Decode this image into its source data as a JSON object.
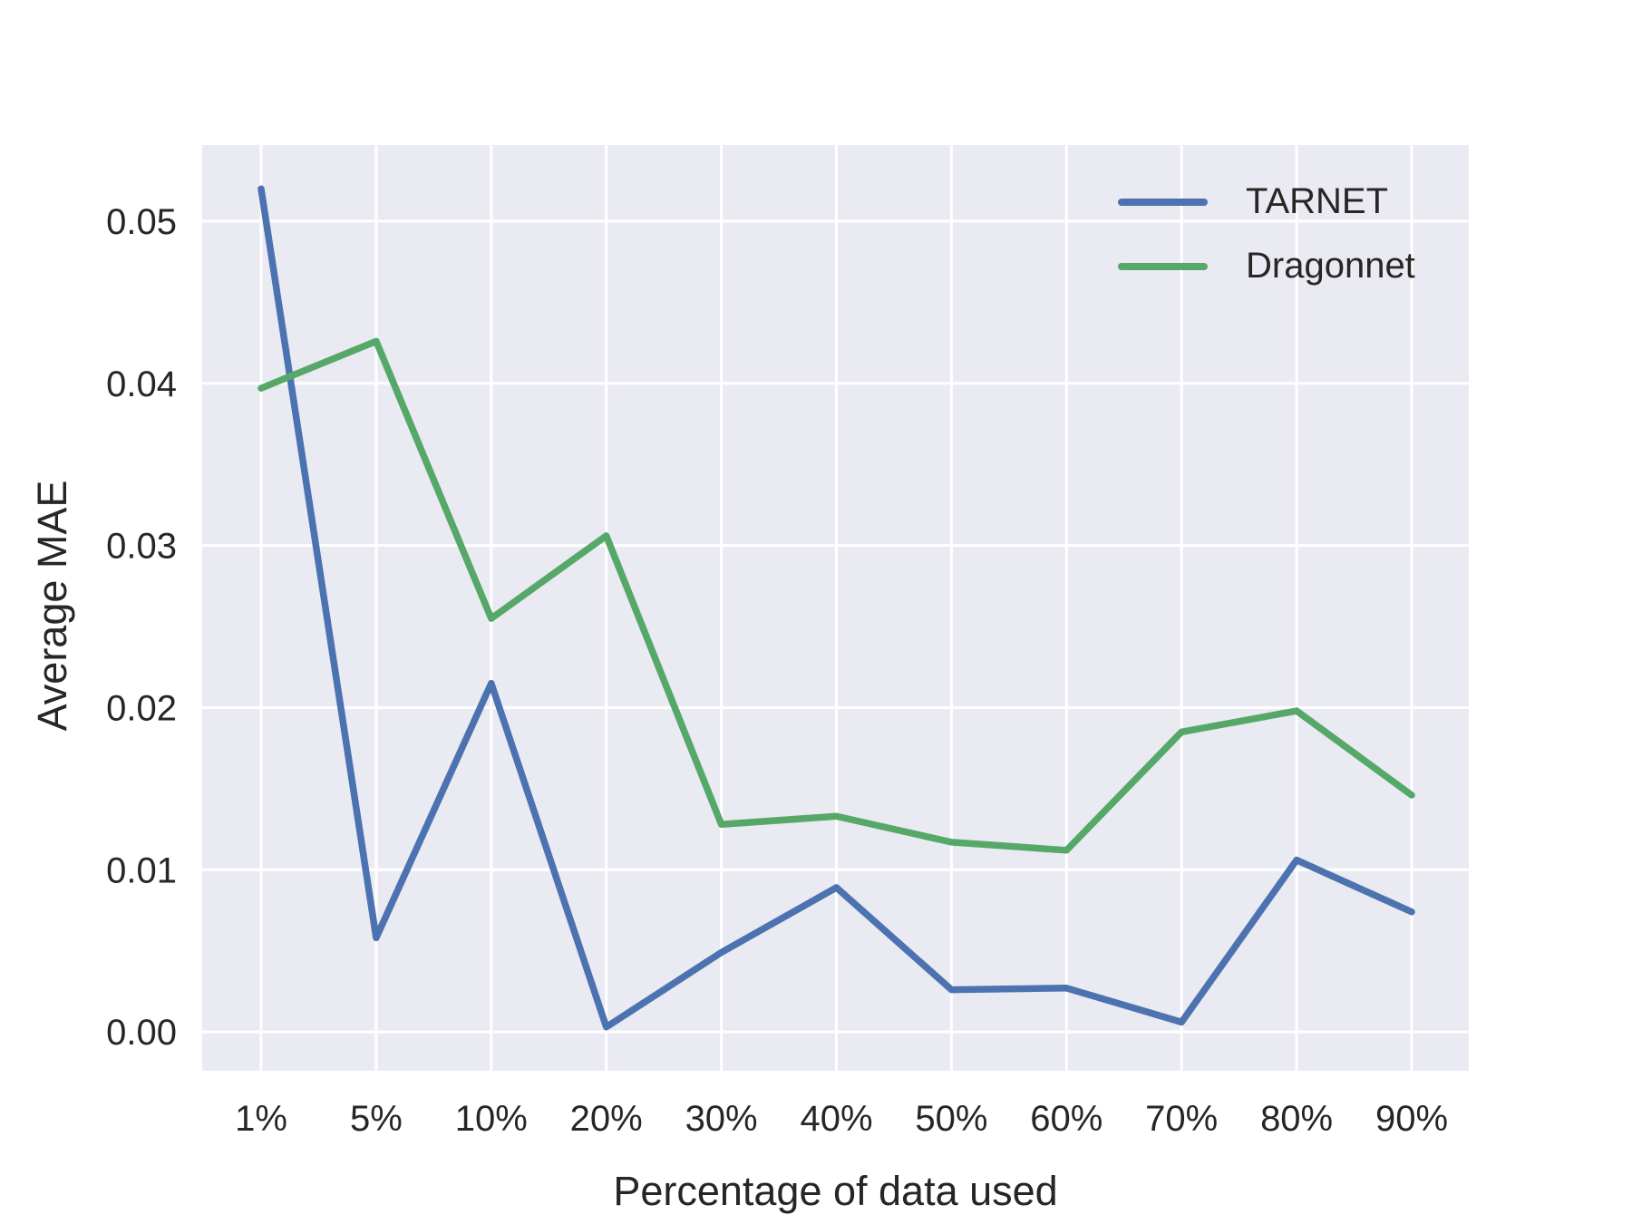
{
  "chart_data": {
    "type": "line",
    "title": "",
    "xlabel": "Percentage of data used",
    "ylabel": "Average MAE",
    "categories": [
      "1%",
      "5%",
      "10%",
      "20%",
      "30%",
      "40%",
      "50%",
      "60%",
      "70%",
      "80%",
      "90%"
    ],
    "series": [
      {
        "name": "TARNET",
        "color": "#4c72b0",
        "values": [
          0.052,
          0.0058,
          0.0215,
          0.0003,
          0.0049,
          0.0089,
          0.0026,
          0.0027,
          0.0006,
          0.0106,
          0.0074
        ]
      },
      {
        "name": "Dragonnet",
        "color": "#55a868",
        "values": [
          0.0397,
          0.0426,
          0.0255,
          0.0306,
          0.0128,
          0.0133,
          0.0117,
          0.0112,
          0.0185,
          0.0198,
          0.0146
        ]
      }
    ],
    "yticks": [
      0.0,
      0.01,
      0.02,
      0.03,
      0.04,
      0.05
    ],
    "ytick_labels": [
      "0.00",
      "0.01",
      "0.02",
      "0.03",
      "0.04",
      "0.05"
    ],
    "ylim": [
      -0.0024,
      0.0547
    ],
    "grid": true,
    "legend_position": "upper right",
    "plot_background": "#eaeaf2",
    "grid_color": "#ffffff",
    "text_color": "#262626",
    "line_width": 7.5
  }
}
